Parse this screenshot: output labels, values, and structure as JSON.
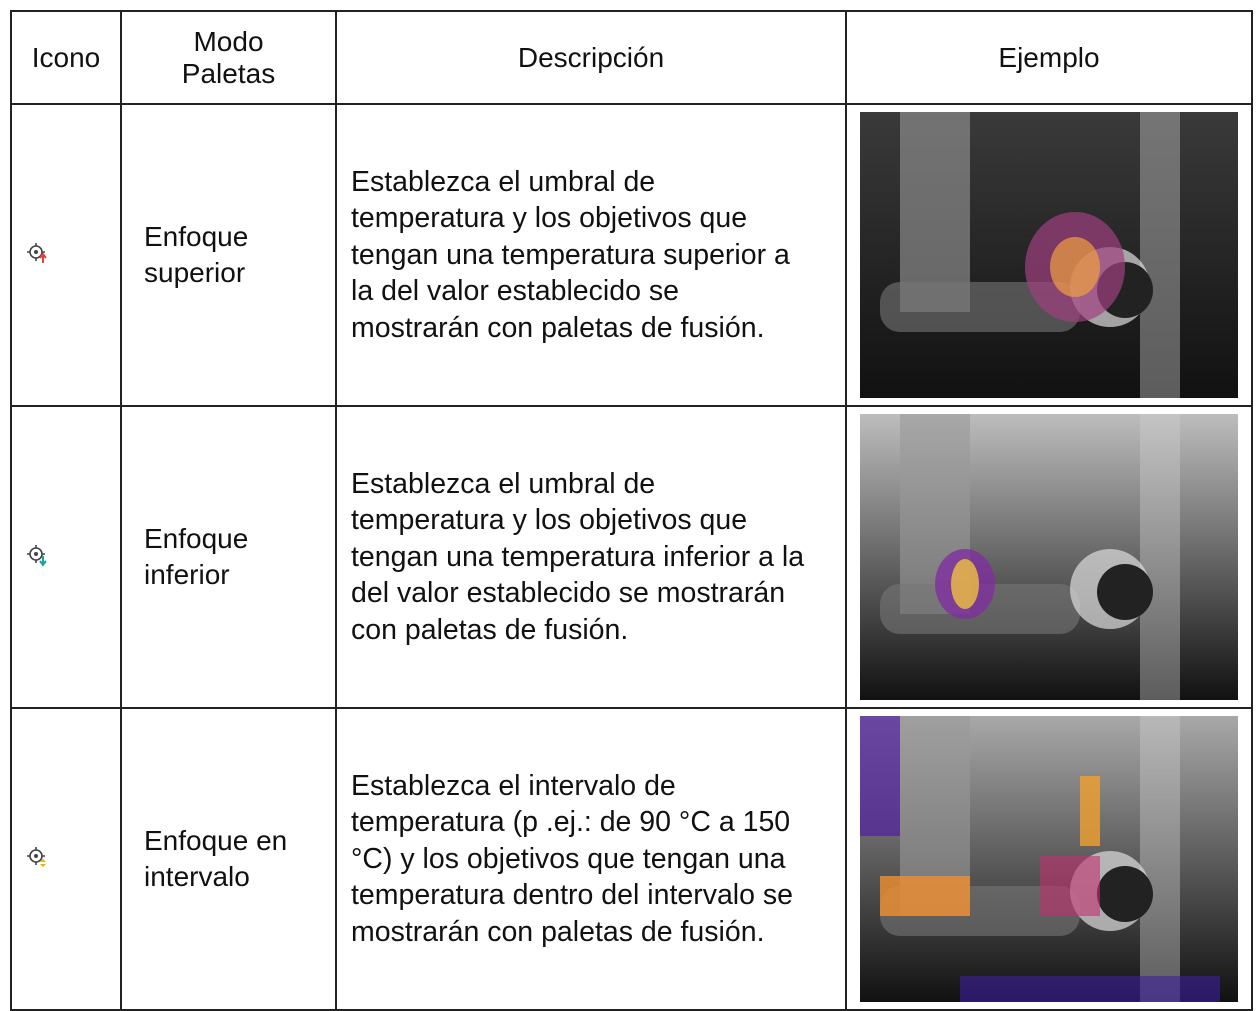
{
  "table": {
    "columns": [
      "Icono",
      "Modo Paletas",
      "Descripción",
      "Ejemplo"
    ],
    "rows": [
      {
        "mode": "Enfoque superior",
        "description": "Establezca el umbral de temperatura y los objetivos que tengan una temperatura superior a la del valor establecido se mostrarán con paletas de fusión."
      },
      {
        "mode": "Enfoque inferior",
        "description": "Establezca el umbral de temperatura y los objetivos que tengan una temperatura inferior a la del valor establecido se mostrarán con paletas de fusión."
      },
      {
        "mode": "Enfoque en intervalo",
        "description": "Establezca el intervalo de temperatura (p .ej.: de 90 °C a 150 °C) y los objetivos que tengan una temperatura dentro del intervalo se mostrarán con paletas de fusión."
      }
    ]
  }
}
